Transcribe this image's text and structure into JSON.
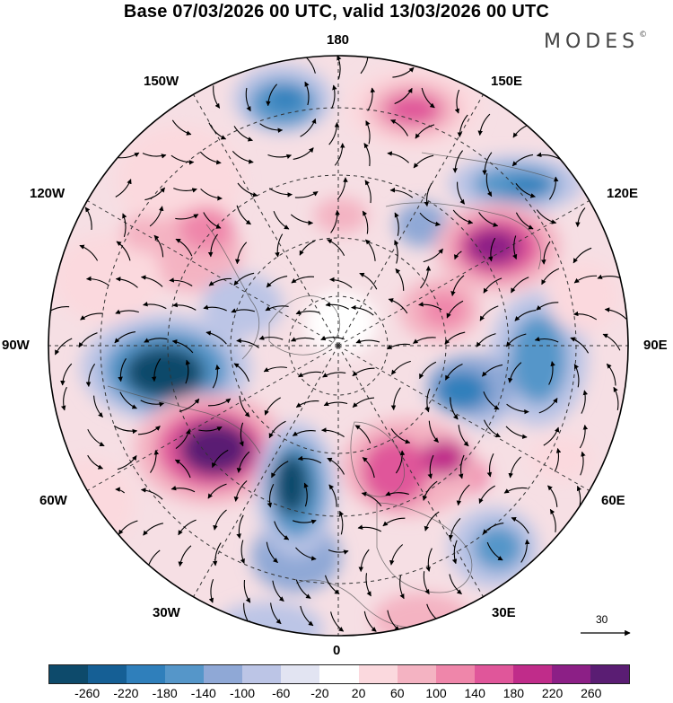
{
  "title": "Base 07/03/2026 00 UTC, valid 13/03/2026 00 UTC",
  "brand": "MODES",
  "brand_mark": "©",
  "longitude_labels": {
    "top": "180",
    "bottom": "0",
    "left": "90W",
    "right": "90E",
    "upper_left_1": "150W",
    "upper_left_2": "120W",
    "upper_right_1": "150E",
    "upper_right_2": "120E",
    "lower_left_1": "60W",
    "lower_left_2": "30W",
    "lower_right_1": "60E",
    "lower_right_2": "30E"
  },
  "vector_scale_label": "30",
  "colors": {
    "n260": "#0d4a6b",
    "n220": "#155f95",
    "n180": "#2f7fbb",
    "n140": "#5596c9",
    "n100": "#8fa8d6",
    "n60": "#bcc5e6",
    "n20": "#e2e4f2",
    "zero": "#ffffff",
    "p20": "#fbd9de",
    "p60": "#f4b3c2",
    "p100": "#ef86aa",
    "p140": "#e0569a",
    "p180": "#c02c8a",
    "p220": "#8c1f86",
    "p260": "#5a1d73"
  },
  "colorbar": {
    "segments": [
      "n260",
      "n220",
      "n180",
      "n140",
      "n100",
      "n60",
      "n20",
      "zero",
      "p20",
      "p60",
      "p100",
      "p140",
      "p180",
      "p220",
      "p260"
    ],
    "ticks": [
      "-260",
      "-220",
      "-180",
      "-140",
      "-100",
      "-60",
      "-20",
      "20",
      "60",
      "100",
      "140",
      "180",
      "220",
      "260"
    ]
  },
  "anomaly_centers": [
    {
      "name": "aleutian-low",
      "sign": "negative",
      "level": "n180"
    },
    {
      "name": "east-siberian-high",
      "sign": "positive",
      "level": "p140"
    },
    {
      "name": "okhotsk-low",
      "sign": "negative",
      "level": "n180"
    },
    {
      "name": "siberian-high",
      "sign": "positive",
      "level": "p220"
    },
    {
      "name": "hudson-bay-low",
      "sign": "negative",
      "level": "n260"
    },
    {
      "name": "labrador-high",
      "sign": "positive",
      "level": "p260"
    },
    {
      "name": "north-atlantic-low",
      "sign": "negative",
      "level": "n260"
    },
    {
      "name": "scandinavian-high",
      "sign": "positive",
      "level": "p180"
    },
    {
      "name": "ural-low",
      "sign": "negative",
      "level": "n180"
    },
    {
      "name": "mediterranean-low",
      "sign": "negative",
      "level": "n140"
    }
  ]
}
